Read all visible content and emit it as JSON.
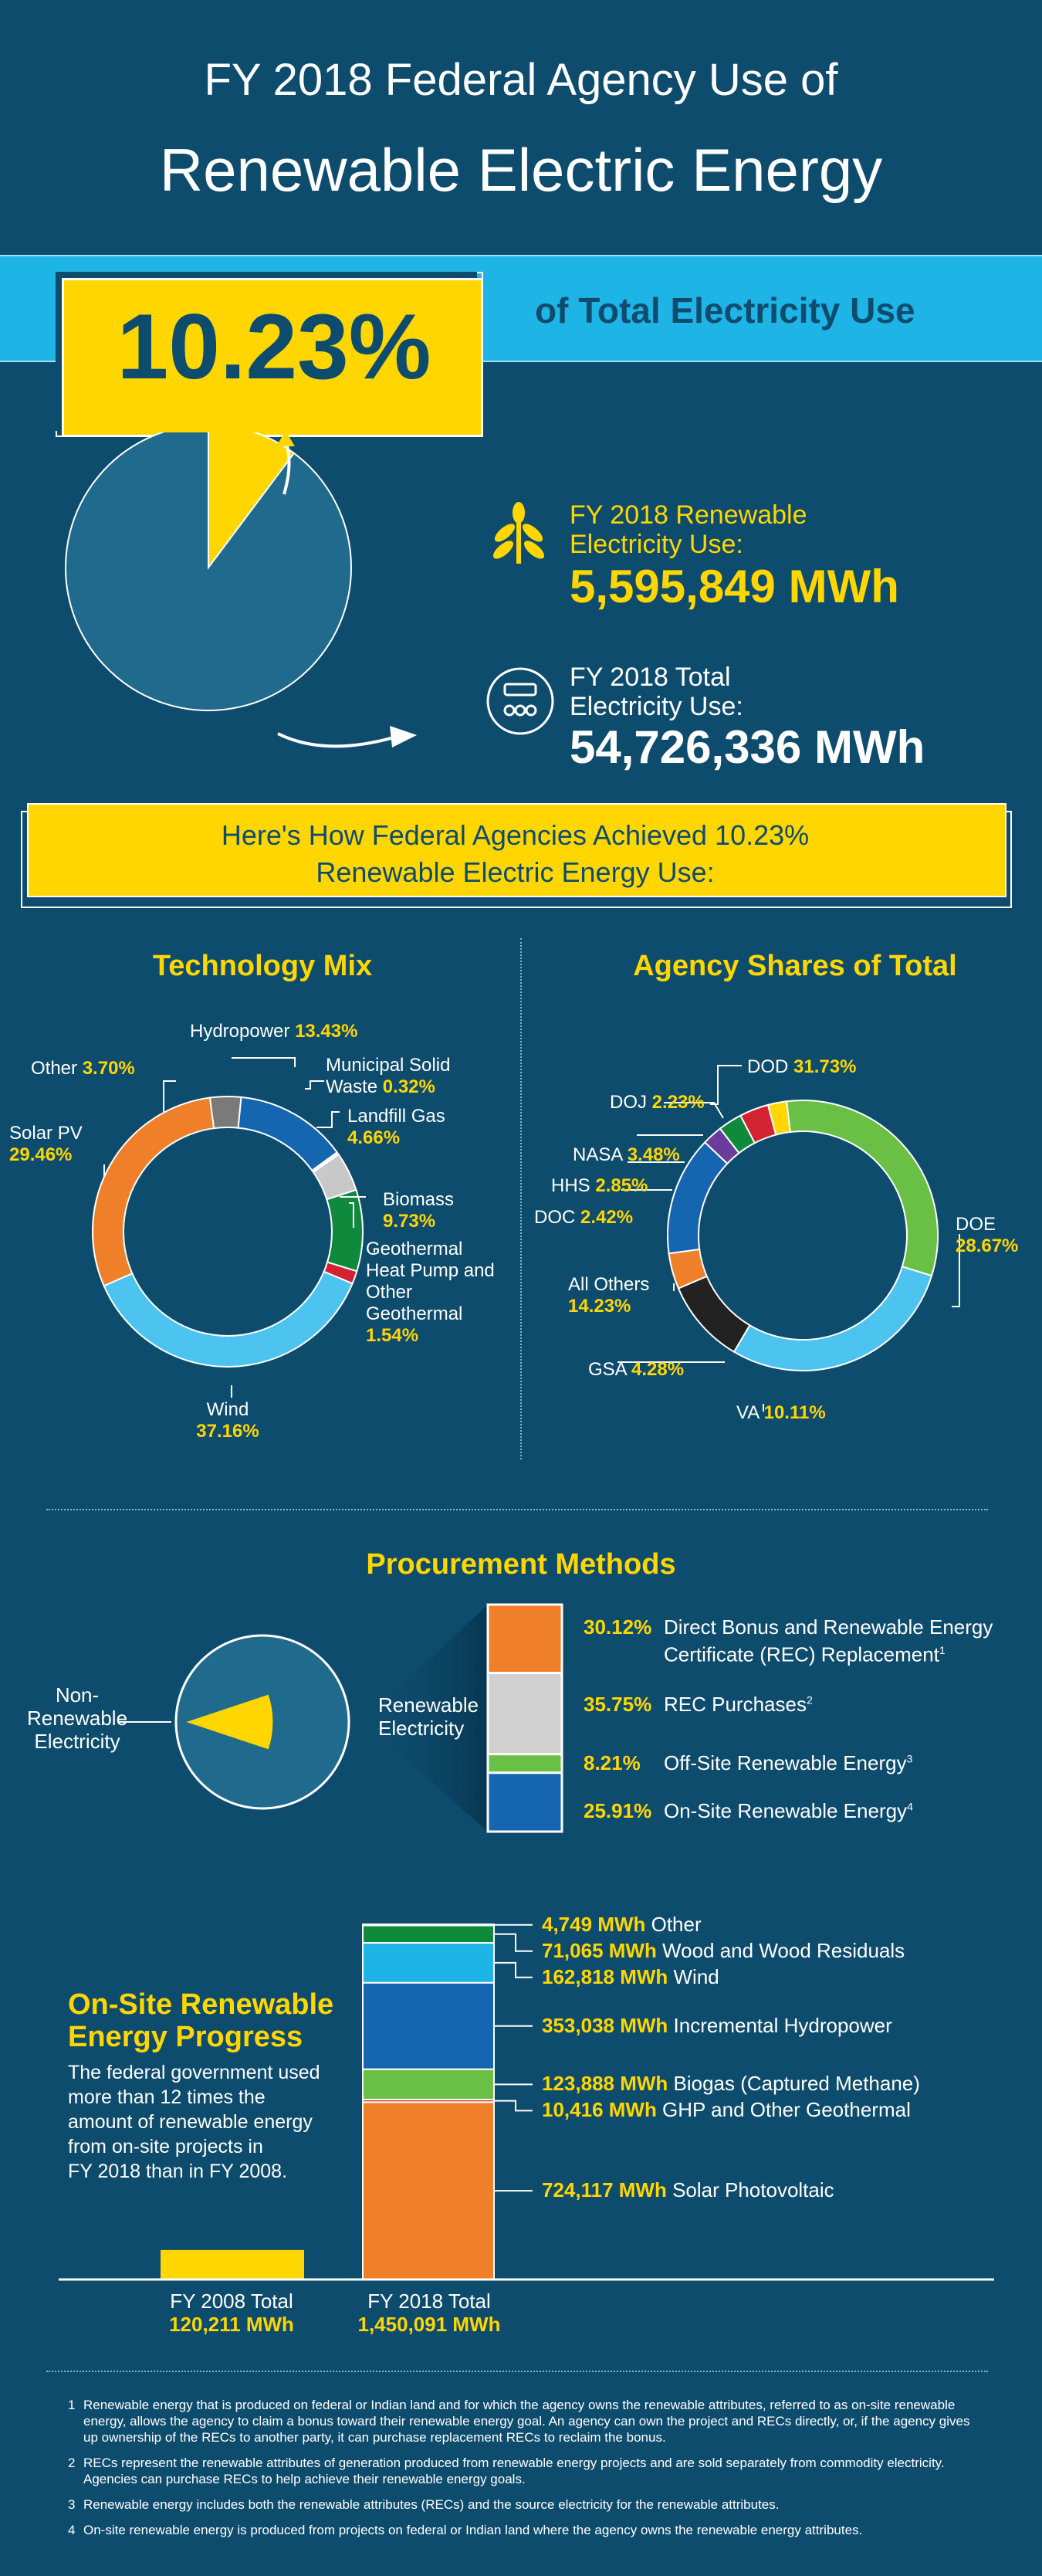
{
  "header": {
    "line1": "FY 2018 Federal Agency Use of",
    "line2": "Renewable Electric Energy"
  },
  "headline": {
    "percent": "10.23%",
    "suffix": "of Total Electricity Use"
  },
  "stats": {
    "renewable_label": "FY 2018 Renewable\nElectricity Use:",
    "renewable_value": "5,595,849 MWh",
    "total_label": "FY 2018 Total\nElectricity Use:",
    "total_value": "54,726,336 MWh"
  },
  "achieve": {
    "line1": "Here's How Federal Agencies Achieved 10.23%",
    "line2": "Renewable Electric Energy Use:"
  },
  "sections": {
    "tech": "Technology Mix",
    "agency": "Agency Shares of Total",
    "procurement": "Procurement Methods"
  },
  "colors": {
    "navy": "#0e4c6e",
    "yellow": "#ffd600",
    "cyan": "#1fb4e6",
    "pie": "#1f6a8d"
  },
  "chart_data": [
    {
      "type": "pie",
      "id": "renewable-share",
      "labels": [
        "Renewable",
        "Non-Renewable"
      ],
      "values": [
        10.23,
        89.77
      ],
      "colors": [
        "#ffd600",
        "#1f6a8d"
      ]
    },
    {
      "type": "pie",
      "id": "technology-mix",
      "title": "Technology Mix",
      "slices": [
        {
          "label": "Hydropower",
          "value": 13.43,
          "display": "13.43%",
          "color": "#1565b0"
        },
        {
          "label": "Municipal Solid Waste",
          "value": 0.32,
          "display": "0.32%",
          "color": "#ffffff"
        },
        {
          "label": "Landfill Gas",
          "value": 4.66,
          "display": "4.66%",
          "color": "#c8c8c8"
        },
        {
          "label": "Biomass",
          "value": 9.73,
          "display": "9.73%",
          "color": "#0f8a3c"
        },
        {
          "label": "Geothermal Heat Pump and Other Geothermal",
          "value": 1.54,
          "display": "1.54%",
          "color": "#d32231"
        },
        {
          "label": "Wind",
          "value": 37.16,
          "display": "37.16%",
          "color": "#4dc3ef"
        },
        {
          "label": "Solar PV",
          "value": 29.46,
          "display": "29.46%",
          "color": "#f07f2a"
        },
        {
          "label": "Other",
          "value": 3.7,
          "display": "3.70%",
          "color": "#7a7a7a"
        }
      ]
    },
    {
      "type": "pie",
      "id": "agency-shares",
      "title": "Agency Shares of Total",
      "slices": [
        {
          "label": "DOD",
          "value": 31.73,
          "display": "31.73%",
          "color": "#6abf45"
        },
        {
          "label": "DOE",
          "value": 28.67,
          "display": "28.67%",
          "color": "#4dc3ef"
        },
        {
          "label": "VA",
          "value": 10.11,
          "display": "10.11%",
          "color": "#222222"
        },
        {
          "label": "GSA",
          "value": 4.28,
          "display": "4.28%",
          "color": "#f07f2a"
        },
        {
          "label": "All Others",
          "value": 14.23,
          "display": "14.23%",
          "color": "#1565b0"
        },
        {
          "label": "DOC",
          "value": 2.42,
          "display": "2.42%",
          "color": "#6a3d9a"
        },
        {
          "label": "HHS",
          "value": 2.85,
          "display": "2.85%",
          "color": "#0f8a3c"
        },
        {
          "label": "NASA",
          "value": 3.48,
          "display": "3.48%",
          "color": "#d32231"
        },
        {
          "label": "DOJ",
          "value": 2.23,
          "display": "2.23%",
          "color": "#ffd600"
        }
      ]
    },
    {
      "type": "bar",
      "id": "procurement-methods",
      "title": "Procurement Methods",
      "pie_labels": {
        "nonrenewable": "Non-\nRenewable\nElectricity",
        "renewable": "Renewable\nElectricity"
      },
      "items": [
        {
          "value": 30.12,
          "display": "30.12%",
          "label": "Direct Bonus and Renewable Energy\nCertificate (REC) Replacement",
          "sup": "1",
          "color": "#f07f2a"
        },
        {
          "value": 35.75,
          "display": "35.75%",
          "label": "REC Purchases",
          "sup": "2",
          "color": "#d0d0d0"
        },
        {
          "value": 8.21,
          "display": "8.21%",
          "label": "Off-Site Renewable Energy",
          "sup": "3",
          "color": "#6abf45"
        },
        {
          "value": 25.91,
          "display": "25.91%",
          "label": "On-Site Renewable Energy",
          "sup": "4",
          "color": "#1565b0"
        }
      ]
    },
    {
      "type": "bar",
      "id": "onsite-progress",
      "title": "On-Site Renewable\nEnergy Progress",
      "description": "The federal government used\nmore than 12 times the\namount of renewable energy\nfrom on-site projects in\nFY 2018 than in FY 2008.",
      "bars": [
        {
          "label": "FY 2008 Total",
          "value": 120211,
          "display": "120,211 MWh",
          "color": "#ffd600"
        },
        {
          "label": "FY 2018 Total",
          "value": 1450091,
          "display": "1,450,091 MWh"
        }
      ],
      "stack_2018": [
        {
          "value": 724117,
          "display": "724,117 MWh",
          "label": "Solar Photovoltaic",
          "color": "#f07f2a"
        },
        {
          "value": 10416,
          "display": "10,416 MWh",
          "label": "GHP and Other Geothermal",
          "color": "#d32231"
        },
        {
          "value": 123888,
          "display": "123,888 MWh",
          "label": "Biogas (Captured Methane)",
          "color": "#6abf45"
        },
        {
          "value": 353038,
          "display": "353,038 MWh",
          "label": "Incremental Hydropower",
          "color": "#1565b0"
        },
        {
          "value": 162818,
          "display": "162,818 MWh",
          "label": "Wind",
          "color": "#1fb4e6"
        },
        {
          "value": 71065,
          "display": "71,065 MWh",
          "label": "Wood and Wood Residuals",
          "color": "#0f8a3c"
        },
        {
          "value": 4749,
          "display": "4,749 MWh",
          "label": "Other",
          "color": "#ffffff"
        }
      ]
    }
  ],
  "footnotes": [
    {
      "num": "1",
      "text": "Renewable energy that is produced on federal or Indian land and for which the agency owns the renewable attributes, referred to as on-site renewable energy, allows the agency to claim a bonus toward their renewable energy goal. An agency can own the project and RECs directly, or, if the agency gives up ownership of the RECs to another party, it can purchase replacement RECs to reclaim the bonus."
    },
    {
      "num": "2",
      "text": "RECs represent the renewable attributes of generation produced from renewable energy projects and are sold separately from commodity electricity. Agencies can purchase RECs to help achieve their renewable energy goals."
    },
    {
      "num": "3",
      "text": "Renewable energy includes both the renewable attributes (RECs) and the source electricity for the renewable attributes."
    },
    {
      "num": "4",
      "text": "On-site renewable energy is produced from projects on federal or Indian land where the agency owns the renewable energy attributes."
    }
  ]
}
